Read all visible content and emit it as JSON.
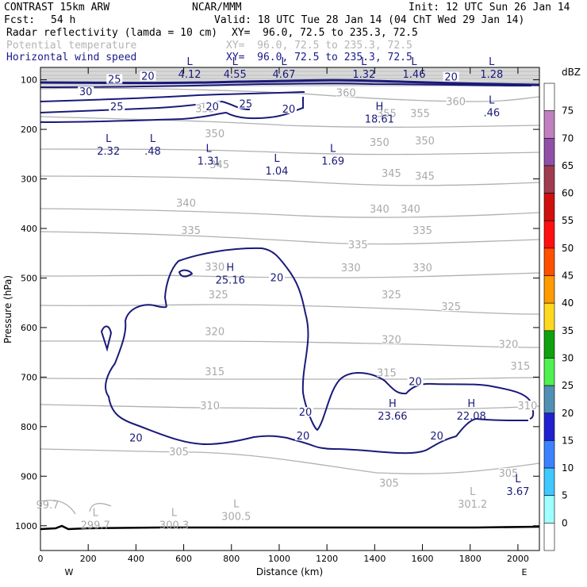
{
  "header": {
    "model": "CONTRAST 15km ARW",
    "center": "NCAR/MMM",
    "init": "Init: 12 UTC Sun 26 Jan 14",
    "fcst_label": "Fcst:",
    "fcst_value": "54 h",
    "valid": "Valid: 18 UTC Tue 28 Jan 14 (04 ChT Wed 29 Jan 14)",
    "fields": [
      {
        "name": "Radar reflectivity (lamda = 10 cm)",
        "xy": "XY=  96.0, 72.5 to 235.3, 72.5"
      },
      {
        "name": "Potential temperature",
        "xy": "XY=  96.0, 72.5 to 235.3, 72.5"
      },
      {
        "name": "Horizontal wind speed",
        "xy": "XY=  96.0, 72.5 to 235.3, 72.5"
      }
    ]
  },
  "colors": {
    "theta": "#b0b0b0",
    "wind": "#1a1a7a",
    "terrain": "#000000"
  },
  "chart_data": {
    "type": "cross-section contour",
    "title": "CONTRAST 15km ARW cross section",
    "xlabel": "Distance (km)",
    "ylabel": "Pressure (hPa)",
    "xlim": [
      0,
      2090
    ],
    "ylim": [
      1050,
      75
    ],
    "x_ticks": [
      0,
      200,
      400,
      600,
      800,
      1000,
      1200,
      1400,
      1600,
      1800,
      2000
    ],
    "y_ticks": [
      100,
      200,
      300,
      400,
      500,
      600,
      700,
      800,
      900,
      1000
    ],
    "x_end_labels": {
      "left": "W",
      "right": "E"
    },
    "colorbar": {
      "unit": "dBZ",
      "levels": [
        {
          "value": 0,
          "color": "#ffffff"
        },
        {
          "value": 5,
          "color": "#a0ffff"
        },
        {
          "value": 10,
          "color": "#40c8ff"
        },
        {
          "value": 15,
          "color": "#3c82ff"
        },
        {
          "value": 20,
          "color": "#2020d0"
        },
        {
          "value": 25,
          "color": "#5090b4"
        },
        {
          "value": 30,
          "color": "#50f050"
        },
        {
          "value": 35,
          "color": "#10a010"
        },
        {
          "value": 40,
          "color": "#ffd820"
        },
        {
          "value": 45,
          "color": "#ff9a00"
        },
        {
          "value": 50,
          "color": "#ff5000"
        },
        {
          "value": 55,
          "color": "#ff1010"
        },
        {
          "value": 60,
          "color": "#d01010"
        },
        {
          "value": 65,
          "color": "#a03c50"
        },
        {
          "value": 70,
          "color": "#9050a8"
        },
        {
          "value": 75,
          "color": "#c080c0"
        }
      ]
    },
    "theta_labels": [
      {
        "text": "360",
        "x": 1280,
        "p": 130
      },
      {
        "text": "360",
        "x": 1740,
        "p": 148
      },
      {
        "text": "355",
        "x": 690,
        "p": 162
      },
      {
        "text": "355",
        "x": 1450,
        "p": 172
      },
      {
        "text": "355",
        "x": 1590,
        "p": 172
      },
      {
        "text": "350",
        "x": 730,
        "p": 213
      },
      {
        "text": "350",
        "x": 1420,
        "p": 230
      },
      {
        "text": "350",
        "x": 1610,
        "p": 227
      },
      {
        "text": "345",
        "x": 750,
        "p": 275
      },
      {
        "text": "345",
        "x": 1470,
        "p": 293
      },
      {
        "text": "345",
        "x": 1610,
        "p": 298
      },
      {
        "text": "340",
        "x": 610,
        "p": 353
      },
      {
        "text": "340",
        "x": 1420,
        "p": 365
      },
      {
        "text": "340",
        "x": 1550,
        "p": 365
      },
      {
        "text": "335",
        "x": 630,
        "p": 408
      },
      {
        "text": "335",
        "x": 1330,
        "p": 437
      },
      {
        "text": "335",
        "x": 1600,
        "p": 408
      },
      {
        "text": "330",
        "x": 730,
        "p": 482
      },
      {
        "text": "330",
        "x": 1300,
        "p": 483
      },
      {
        "text": "330",
        "x": 1600,
        "p": 483
      },
      {
        "text": "325",
        "x": 745,
        "p": 538
      },
      {
        "text": "325",
        "x": 1470,
        "p": 538
      },
      {
        "text": "325",
        "x": 1720,
        "p": 562
      },
      {
        "text": "320",
        "x": 730,
        "p": 612
      },
      {
        "text": "320",
        "x": 1470,
        "p": 628
      },
      {
        "text": "320",
        "x": 1960,
        "p": 638
      },
      {
        "text": "315",
        "x": 730,
        "p": 693
      },
      {
        "text": "315",
        "x": 1450,
        "p": 695
      },
      {
        "text": "315",
        "x": 2010,
        "p": 682
      },
      {
        "text": "310",
        "x": 710,
        "p": 762
      },
      {
        "text": "310",
        "x": 2040,
        "p": 762
      },
      {
        "text": "305",
        "x": 580,
        "p": 855
      },
      {
        "text": "305",
        "x": 1460,
        "p": 918
      },
      {
        "text": "305",
        "x": 1960,
        "p": 898
      }
    ],
    "wind_labels": [
      {
        "text": "25",
        "x": 310,
        "p": 103
      },
      {
        "text": "20",
        "x": 450,
        "p": 97
      },
      {
        "text": "30",
        "x": 190,
        "p": 128
      },
      {
        "text": "25",
        "x": 320,
        "p": 158
      },
      {
        "text": "20",
        "x": 720,
        "p": 158
      },
      {
        "text": "25",
        "x": 860,
        "p": 153
      },
      {
        "text": "20",
        "x": 1040,
        "p": 163
      },
      {
        "text": "20",
        "x": 1720,
        "p": 98
      },
      {
        "text": "20",
        "x": 990,
        "p": 503
      },
      {
        "text": "20",
        "x": 1570,
        "p": 713
      },
      {
        "text": "20",
        "x": 1110,
        "p": 775
      },
      {
        "text": "20",
        "x": 400,
        "p": 827
      },
      {
        "text": "20",
        "x": 1100,
        "p": 823
      },
      {
        "text": "20",
        "x": 1660,
        "p": 823
      }
    ],
    "extrema": [
      {
        "type": "L",
        "value": "4.12",
        "x": 625,
        "p": 93,
        "style": "wind"
      },
      {
        "type": "L",
        "value": "4.55",
        "x": 815,
        "p": 93,
        "style": "wind"
      },
      {
        "type": "L",
        "value": "4.67",
        "x": 1020,
        "p": 93,
        "style": "wind"
      },
      {
        "type": "L",
        "value": "1.32",
        "x": 1355,
        "p": 93,
        "style": "wind"
      },
      {
        "type": "L",
        "value": "1.46",
        "x": 1565,
        "p": 93,
        "style": "wind"
      },
      {
        "type": "L",
        "value": "1.28",
        "x": 1890,
        "p": 93,
        "style": "wind"
      },
      {
        "type": "L",
        "value": ".46",
        "x": 1890,
        "p": 170,
        "style": "wind"
      },
      {
        "type": "H",
        "value": "18.61",
        "x": 1420,
        "p": 183,
        "style": "wind"
      },
      {
        "type": "L",
        "value": "2.32",
        "x": 285,
        "p": 248,
        "style": "wind"
      },
      {
        "type": "L",
        "value": ".48",
        "x": 470,
        "p": 248,
        "style": "wind"
      },
      {
        "type": "L",
        "value": "1.31",
        "x": 705,
        "p": 268,
        "style": "wind"
      },
      {
        "type": "L",
        "value": "1.04",
        "x": 990,
        "p": 288,
        "style": "wind"
      },
      {
        "type": "L",
        "value": "1.69",
        "x": 1225,
        "p": 268,
        "style": "wind"
      },
      {
        "type": "H",
        "value": "25.16",
        "x": 795,
        "p": 508,
        "style": "wind"
      },
      {
        "type": "H",
        "value": "23.66",
        "x": 1475,
        "p": 783,
        "style": "wind"
      },
      {
        "type": "H",
        "value": "22.08",
        "x": 1805,
        "p": 783,
        "style": "wind"
      },
      {
        "type": "L",
        "value": "3.67",
        "x": 2000,
        "p": 935,
        "style": "wind"
      },
      {
        "type": "L",
        "value": "301.2",
        "x": 1810,
        "p": 960,
        "style": "theta"
      },
      {
        "type": "L",
        "value": "299.7",
        "x": 230,
        "p": 1003,
        "style": "theta"
      },
      {
        "type": "L",
        "value": "300.3",
        "x": 560,
        "p": 1003,
        "style": "theta"
      },
      {
        "type": "L",
        "value": "300.5",
        "x": 820,
        "p": 985,
        "style": "theta"
      },
      {
        "type": "",
        "value": "99.7",
        "x": 0,
        "p": 962,
        "style": "theta"
      }
    ]
  }
}
